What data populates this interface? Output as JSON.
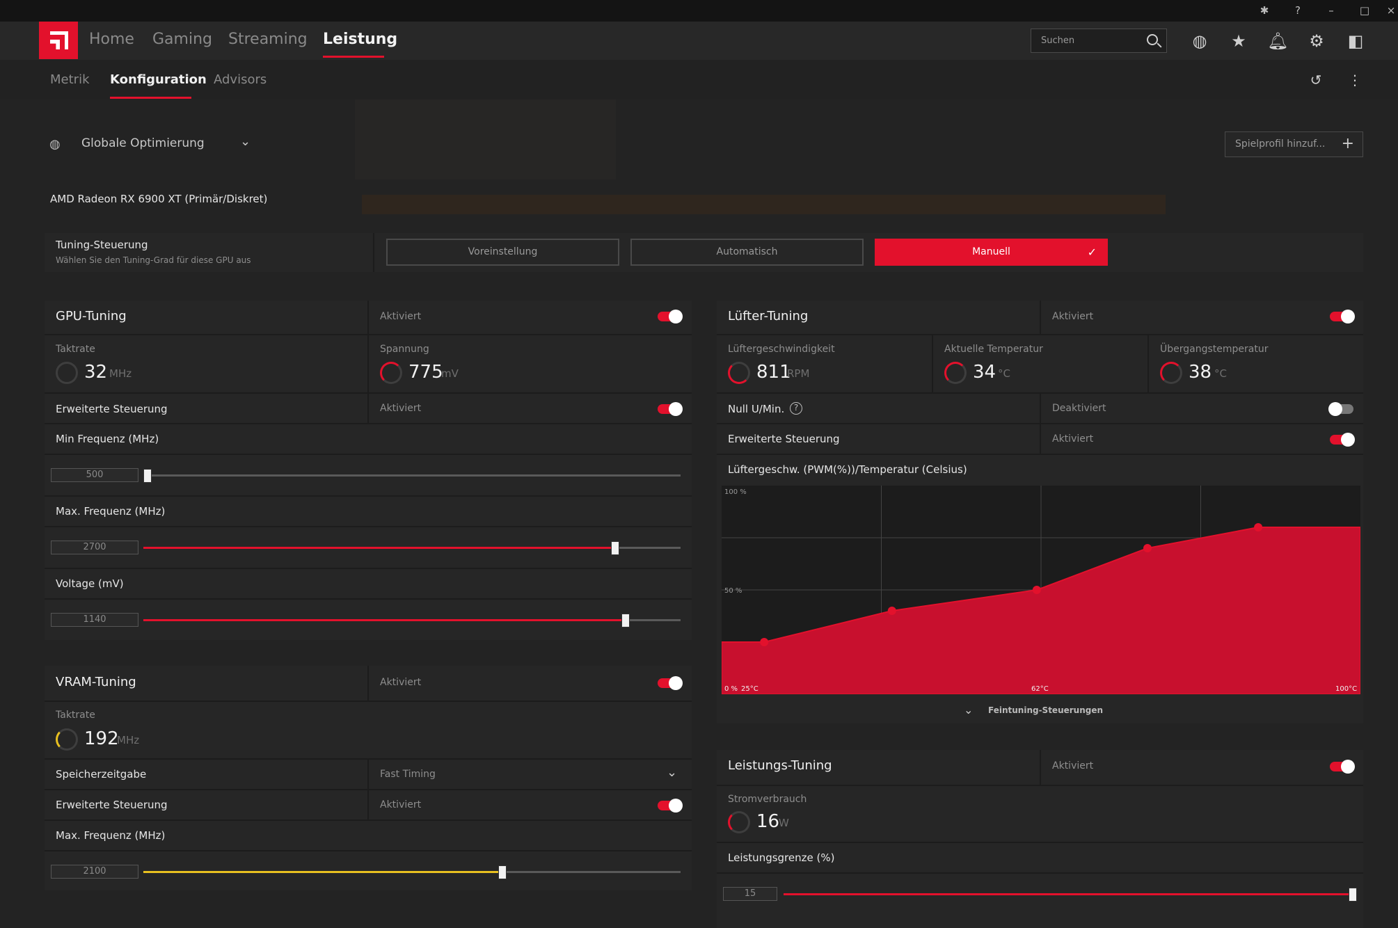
{
  "nav": {
    "home": "Home",
    "gaming": "Gaming",
    "streaming": "Streaming",
    "leistung": "Leistung",
    "search_placeholder": "Suchen"
  },
  "subnav": {
    "metrik": "Metrik",
    "konfiguration": "Konfiguration",
    "advisors": "Advisors"
  },
  "profile": {
    "label": "Globale Optimierung",
    "add_button": "Spielprofil hinzuf...",
    "gpu_name": "AMD Radeon RX 6900 XT (Primär/Diskret)"
  },
  "tuning_control": {
    "title": "Tuning-Steuerung",
    "subtitle": "Wählen Sie den Tuning-Grad für diese GPU aus",
    "opt_preset": "Voreinstellung",
    "opt_auto": "Automatisch",
    "opt_manual": "Manuell"
  },
  "gpu_tuning": {
    "title": "GPU-Tuning",
    "status": "Aktiviert",
    "enabled": true,
    "clock_label": "Taktrate",
    "clock_value": "32",
    "clock_unit": "MHz",
    "voltage_label": "Spannung",
    "voltage_value": "775",
    "voltage_unit": "mV",
    "adv_label": "Erweiterte Steuerung",
    "adv_status": "Aktiviert",
    "min_freq_label": "Min Frequenz (MHz)",
    "min_freq_value": "500",
    "min_freq_level": 0.0,
    "max_freq_label": "Max. Frequenz (MHz)",
    "max_freq_value": "2700",
    "max_freq_level": 0.87,
    "voltage_ctl_label": "Voltage (mV)",
    "voltage_ctl_value": "1140",
    "voltage_ctl_level": 0.89
  },
  "vram_tuning": {
    "title": "VRAM-Tuning",
    "status": "Aktiviert",
    "clock_label": "Taktrate",
    "clock_value": "192",
    "clock_unit": "MHz",
    "timing_label": "Speicherzeitgabe",
    "timing_value": "Fast Timing",
    "adv_label": "Erweiterte Steuerung",
    "adv_status": "Aktiviert",
    "max_freq_label": "Max. Frequenz (MHz)",
    "max_freq_value": "2100",
    "max_freq_level": 0.66
  },
  "fan_tuning": {
    "title": "Lüfter-Tuning",
    "status": "Aktiviert",
    "speed_label": "Lüftergeschwindigkeit",
    "speed_value": "811",
    "speed_unit": "RPM",
    "temp_label": "Aktuelle Temperatur",
    "temp_value": "34",
    "temp_unit": "°C",
    "junction_label": "Übergangstemperatur",
    "junction_value": "38",
    "junction_unit": "°C",
    "zero_rpm_label": "Null U/Min.",
    "zero_rpm_status": "Deaktiviert",
    "adv_label": "Erweiterte Steuerung",
    "adv_status": "Aktiviert",
    "curve_label": "Lüftergeschw. (PWM(%))/Temperatur (Celsius)",
    "fine_tune_label": "Feintuning-Steuerungen"
  },
  "power_tuning": {
    "title": "Leistungs-Tuning",
    "status": "Aktiviert",
    "power_label": "Stromverbrauch",
    "power_value": "16",
    "power_unit": "W",
    "limit_label": "Leistungsgrenze (%)",
    "limit_value": "15",
    "limit_level": 1.0
  },
  "chart_data": {
    "type": "area",
    "title": "Lüftergeschw. (PWM(%))/Temperatur (Celsius)",
    "y_tick_labels": [
      "100 %",
      "50 %",
      "0 %"
    ],
    "x_tick_labels": [
      "25°C",
      "62°C",
      "100°C"
    ],
    "xlim": [
      25,
      100
    ],
    "ylim": [
      0,
      100
    ],
    "x": [
      25,
      30,
      45,
      62,
      75,
      88,
      100
    ],
    "y": [
      25,
      25,
      40,
      50,
      70,
      80,
      80
    ],
    "markers": [
      30,
      45,
      62,
      75,
      88
    ],
    "color": "#c8102e"
  },
  "colors": {
    "accent": "#e3112c",
    "yellow": "#e8c020"
  }
}
